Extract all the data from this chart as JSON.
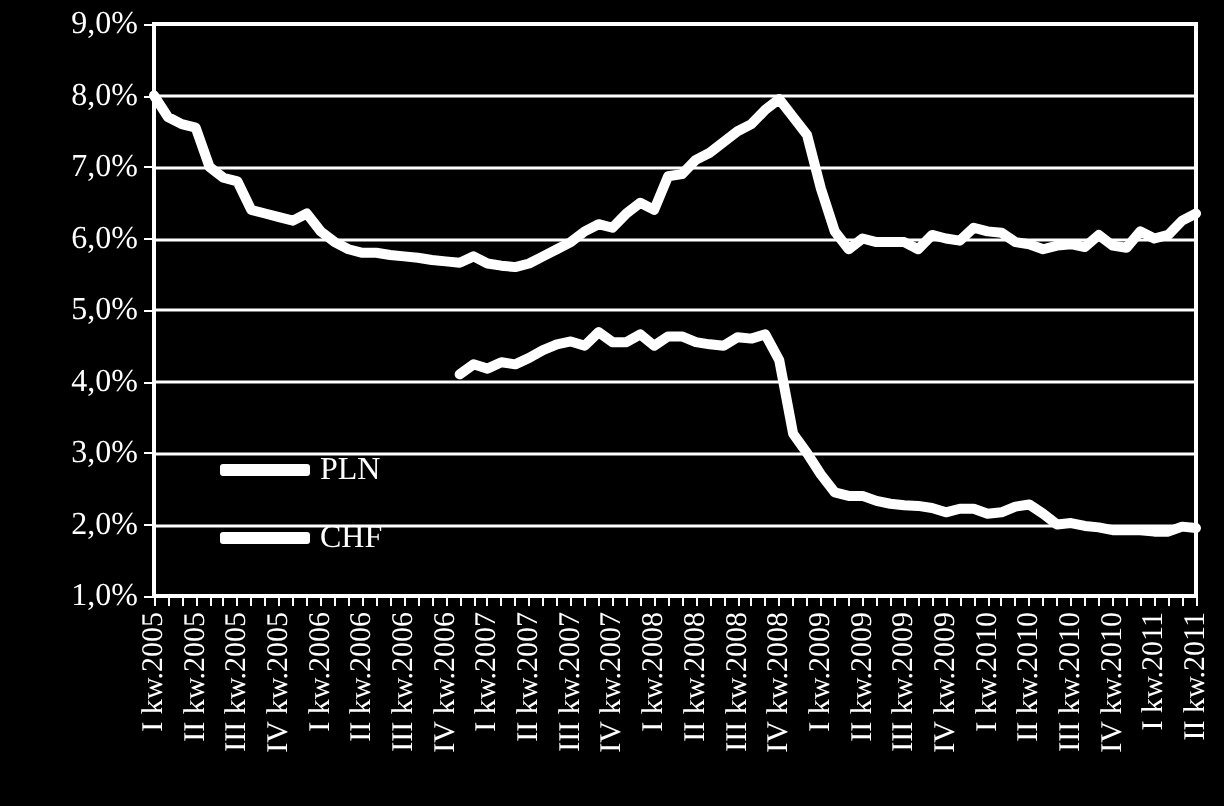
{
  "chart_data": {
    "type": "line",
    "categories": [
      "I kw.2005",
      null,
      null,
      "II kw.2005",
      null,
      null,
      "III kw.2005",
      null,
      null,
      "IV kw.2005",
      null,
      null,
      "I kw.2006",
      null,
      null,
      "II kw.2006",
      null,
      null,
      "III kw.2006",
      null,
      null,
      "IV kw.2006",
      null,
      null,
      "I kw.2007",
      null,
      null,
      "II kw.2007",
      null,
      null,
      "III kw.2007",
      null,
      null,
      "IV kw.2007",
      null,
      null,
      "I kw.2008",
      null,
      null,
      "II kw.2008",
      null,
      null,
      "III kw.2008",
      null,
      null,
      "IV kw.2008",
      null,
      null,
      "I kw.2009",
      null,
      null,
      "II kw.2009",
      null,
      null,
      "III kw.2009",
      null,
      null,
      "IV kw.2009",
      null,
      null,
      "I kw.2010",
      null,
      null,
      "II kw.2010",
      null,
      null,
      "III kw.2010",
      null,
      null,
      "IV kw.2010",
      null,
      null,
      "I kw.2011",
      null,
      null,
      "II kw.2011"
    ],
    "series": [
      {
        "name": "PLN",
        "color": "#ffffff",
        "values": [
          8.0,
          7.7,
          7.6,
          7.55,
          7.0,
          6.85,
          6.8,
          6.4,
          6.35,
          6.3,
          6.25,
          6.35,
          6.1,
          5.95,
          5.85,
          5.8,
          5.8,
          5.77,
          5.75,
          5.73,
          5.7,
          5.68,
          5.66,
          5.75,
          5.65,
          5.62,
          5.6,
          5.65,
          5.75,
          5.85,
          5.95,
          6.1,
          6.2,
          6.15,
          6.35,
          6.5,
          6.4,
          6.87,
          6.9,
          7.1,
          7.2,
          7.35,
          7.5,
          7.6,
          7.8,
          7.95,
          7.7,
          7.45,
          6.7,
          6.1,
          5.85,
          6.0,
          5.95,
          5.95,
          5.95,
          5.85,
          6.05,
          6.0,
          5.97,
          6.15,
          6.1,
          6.08,
          5.95,
          5.92,
          5.85,
          5.9,
          5.92,
          5.88,
          6.05,
          5.9,
          5.87,
          6.1,
          6.0,
          6.05,
          6.25,
          6.35
        ]
      },
      {
        "name": "CHF",
        "color": "#ffffff",
        "values": [
          null,
          null,
          null,
          null,
          null,
          null,
          null,
          null,
          null,
          null,
          null,
          null,
          null,
          null,
          null,
          null,
          null,
          null,
          null,
          null,
          null,
          null,
          4.1,
          4.24,
          4.18,
          4.27,
          4.24,
          4.33,
          4.44,
          4.52,
          4.56,
          4.5,
          4.69,
          4.55,
          4.55,
          4.66,
          4.5,
          4.63,
          4.63,
          4.55,
          4.52,
          4.5,
          4.62,
          4.6,
          4.66,
          4.3,
          3.27,
          3.0,
          2.7,
          2.45,
          2.4,
          2.4,
          2.33,
          2.29,
          2.27,
          2.26,
          2.23,
          2.17,
          2.22,
          2.22,
          2.15,
          2.17,
          2.25,
          2.28,
          2.15,
          2.0,
          2.02,
          1.98,
          1.96,
          1.92,
          1.92,
          1.92,
          1.9,
          1.9,
          1.97,
          1.95
        ]
      }
    ],
    "ylim": [
      1,
      9
    ],
    "yticks": [
      {
        "value": 1,
        "label": "1,0%"
      },
      {
        "value": 2,
        "label": "2,0%"
      },
      {
        "value": 3,
        "label": "3,0%"
      },
      {
        "value": 4,
        "label": "4,0%"
      },
      {
        "value": 5,
        "label": "5,0%"
      },
      {
        "value": 6,
        "label": "6,0%"
      },
      {
        "value": 7,
        "label": "7,0%"
      },
      {
        "value": 8,
        "label": "8,0%"
      },
      {
        "value": 9,
        "label": "9,0%"
      }
    ],
    "grid": "y",
    "legend": "bottom left",
    "marker": "none",
    "line_style": "solid"
  }
}
